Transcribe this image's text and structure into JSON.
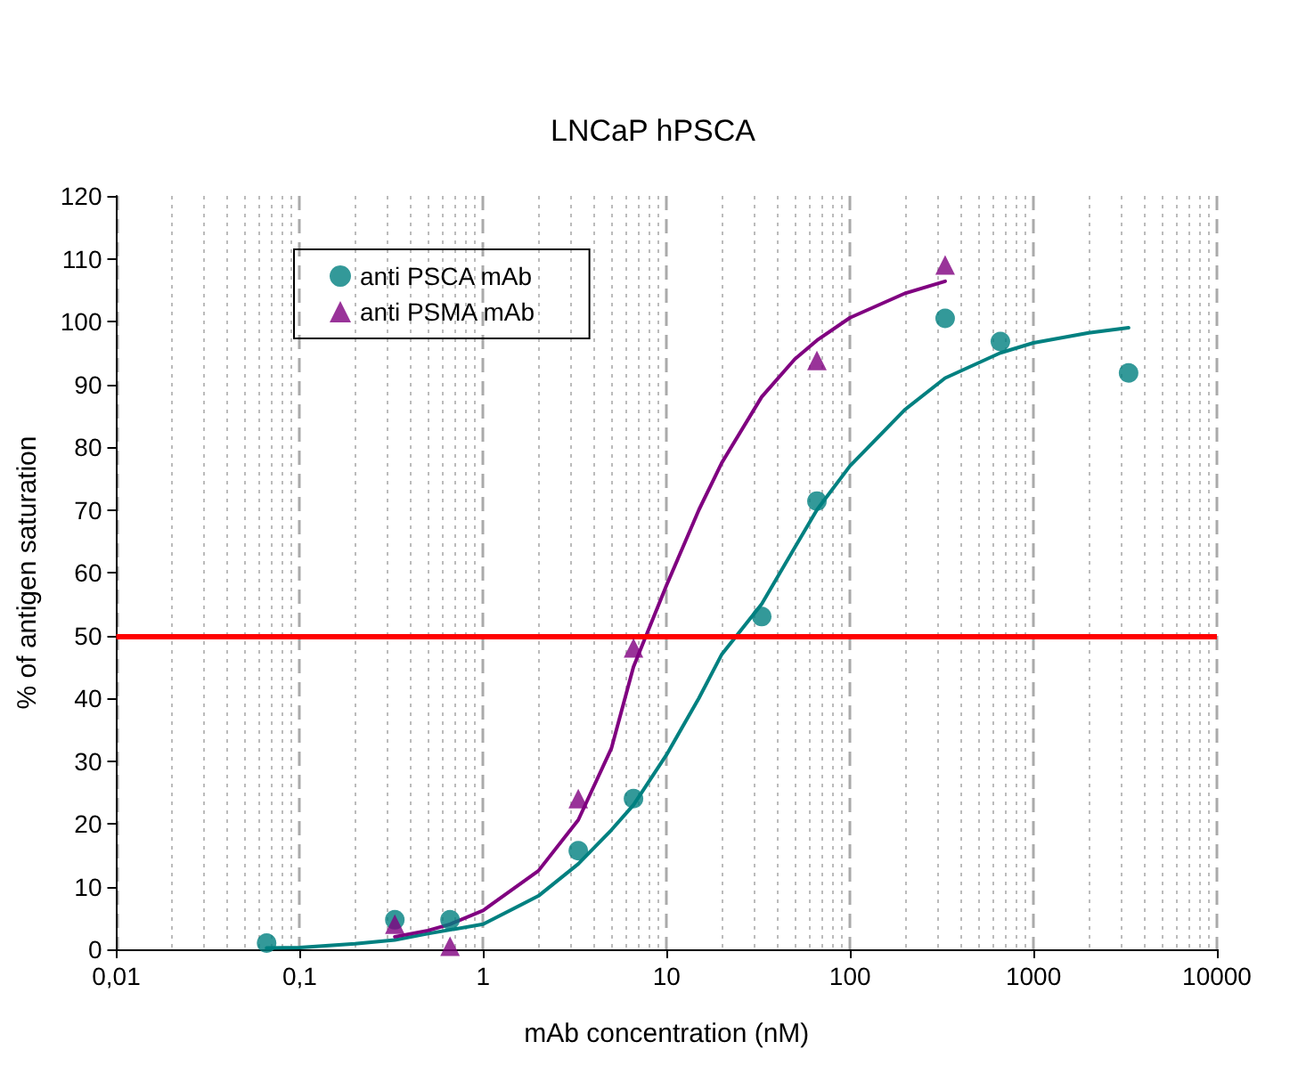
{
  "chart_data": {
    "type": "scatter",
    "title": "LNCaP hPSCA",
    "xlabel": "mAb concentration (nM)",
    "ylabel": "% of antigen saturation",
    "log": "x",
    "grid": "x",
    "legend": "top left",
    "marker": "circle",
    "xlim": [
      0.01,
      10000
    ],
    "xticks": [
      {
        "value": 0.01,
        "label": "0,01"
      },
      {
        "value": 0.1,
        "label": "0,1"
      },
      1,
      10,
      100,
      1000,
      10000
    ],
    "ylim": [
      0,
      120
    ],
    "yticks": [
      0,
      10,
      20,
      30,
      40,
      50,
      60,
      70,
      80,
      90,
      100,
      110,
      120
    ],
    "series": [
      {
        "name": "anti PSCA mAb",
        "color": "#008080",
        "x": [
          0.066,
          0.33,
          0.66,
          3.3,
          6.6,
          33,
          66,
          330,
          660,
          3300
        ],
        "values": [
          1,
          4.7,
          4.7,
          15.7,
          24,
          53,
          71.4,
          100.5,
          96.8,
          91.8
        ]
      },
      {
        "name": "anti PSMA mAb",
        "color": "#800080",
        "marker": "triangle",
        "x": [
          0.33,
          0.66,
          3.3,
          6.6,
          66,
          330
        ],
        "values": [
          4,
          0.5,
          24,
          48,
          93.8,
          109
        ]
      },
      {
        "color": "#008080",
        "type": "line",
        "marker": "none",
        "x": [
          0.066,
          0.1,
          0.2,
          0.33,
          0.5,
          1,
          2,
          3.3,
          5,
          6.6,
          10,
          15,
          20,
          33,
          50,
          66,
          100,
          200,
          330,
          660,
          1000,
          2000,
          3300
        ],
        "values": [
          0.2,
          0.3,
          0.9,
          1.5,
          2.5,
          4,
          8.5,
          13.6,
          19,
          23,
          31,
          40,
          47,
          55,
          64,
          70,
          77,
          86,
          91,
          95,
          96.6,
          98.2,
          99
        ]
      },
      {
        "color": "#800080",
        "type": "line",
        "marker": "none",
        "x": [
          0.33,
          0.5,
          0.66,
          1,
          2,
          3.3,
          5,
          6.6,
          10,
          15,
          20,
          33,
          50,
          66,
          100,
          200,
          330
        ],
        "values": [
          2,
          3,
          4,
          6.2,
          12.5,
          20.6,
          32,
          45,
          58,
          70,
          77.5,
          88,
          94,
          97,
          100.6,
          104.5,
          106.4
        ]
      }
    ],
    "ref_lines": [
      {
        "axis": "y",
        "value": 50,
        "color": "#ff0000"
      }
    ]
  }
}
